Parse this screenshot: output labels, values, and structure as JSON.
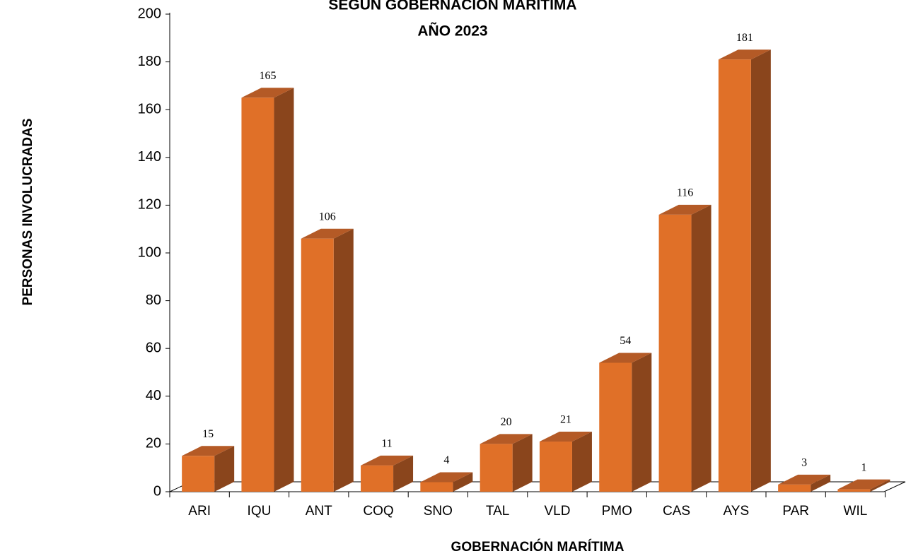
{
  "chart_data": {
    "type": "bar3d",
    "title": "SEGÚN GOBERNACIÓN MARÍTIMA",
    "subtitle": "AÑO 2023",
    "x_label": "GOBERNACIÓN MARÍTIMA",
    "y_label": "PERSONAS INVOLUCRADAS",
    "categories": [
      "ARI",
      "IQU",
      "ANT",
      "COQ",
      "SNO",
      "TAL",
      "VLD",
      "PMO",
      "CAS",
      "AYS",
      "PAR",
      "WIL"
    ],
    "values": [
      15,
      165,
      106,
      11,
      4,
      20,
      21,
      54,
      116,
      181,
      3,
      1
    ],
    "color": "#e07028",
    "ylim": [
      0,
      200
    ],
    "yticks": [
      0,
      20,
      40,
      60,
      80,
      100,
      120,
      140,
      160,
      180,
      200
    ],
    "grid": false
  }
}
